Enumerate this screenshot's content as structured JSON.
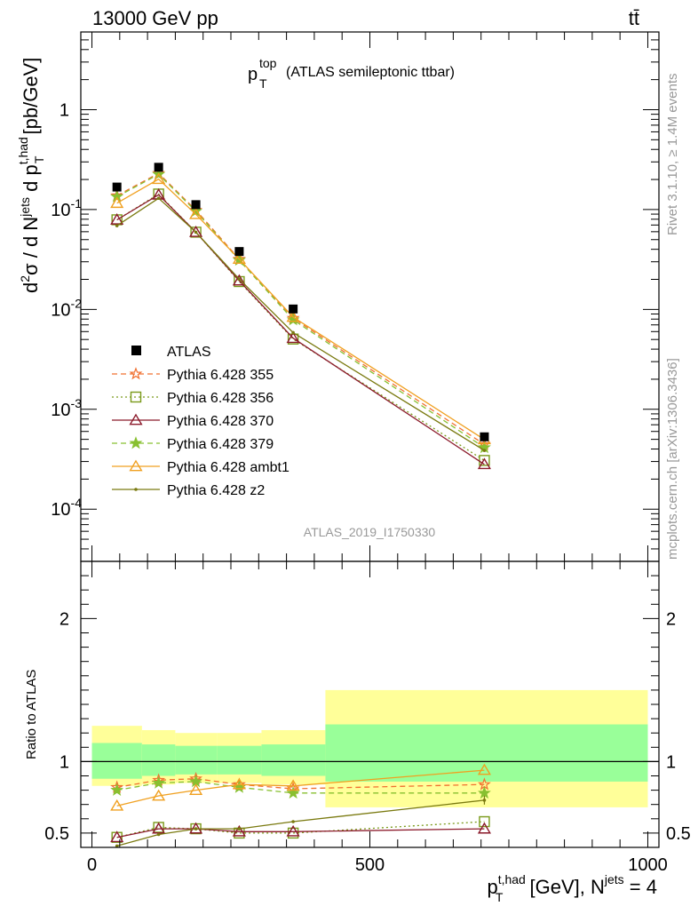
{
  "header": {
    "energy": "13000 GeV pp",
    "process": "tt̄",
    "plot_title_main": "p",
    "plot_title_sup": "top",
    "plot_title_sub": "T",
    "plot_title_rest": "(ATLAS semileptonic ttbar)",
    "analysis_id": "ATLAS_2019_I1750330",
    "side_rivet": "Rivet 3.1.10, ≥ 1.4M events",
    "side_mcplots": "mcplots.cern.ch [arXiv:1306.3436]"
  },
  "axes": {
    "main_ylabel": {
      "p1": "d",
      "p1_sup": "2",
      "p2": "σ / d N",
      "p2_sup": "jets",
      "p3": " d p",
      "p3_sup": "t,had",
      "p3_sub": "T",
      "p4": " [pb/GeV]"
    },
    "ratio_ylabel": "Ratio to ATLAS",
    "xlabel": {
      "p1": "p",
      "p1_sup": "t,had",
      "p1_sub": "T",
      "p2": " [GeV], N",
      "p2_sup": "jets",
      "p3": " = 4"
    },
    "main_ticks": [
      {
        "v": 1,
        "base": "1",
        "exp": ""
      },
      {
        "v": 0.1,
        "base": "10",
        "exp": "-1"
      },
      {
        "v": 0.01,
        "base": "10",
        "exp": "-2"
      },
      {
        "v": 0.001,
        "base": "10",
        "exp": "-3"
      },
      {
        "v": 0.0001,
        "base": "10",
        "exp": "-4"
      }
    ],
    "ratio_ticks": [
      "2",
      "1",
      "0.5"
    ],
    "x_ticks": [
      "0",
      "500",
      "1000"
    ]
  },
  "legend": {
    "atlas": "ATLAS",
    "s355": "Pythia 6.428 355",
    "s356": "Pythia 6.428 356",
    "s370": "Pythia 6.428 370",
    "s379": "Pythia 6.428 379",
    "sambt1": "Pythia 6.428 ambt1",
    "sz2": "Pythia 6.428 z2"
  },
  "chart_data": {
    "type": "line",
    "title": "pT top (ATLAS semileptonic ttbar)",
    "xlabel": "pT t,had [GeV], N jets = 4",
    "ylabel": "d2σ / d Njets d pT t,had [pb/GeV]",
    "xlim": [
      -20,
      1020
    ],
    "ylim": [
      3e-05,
      6
    ],
    "ratio_ylim": [
      0.4,
      2.4
    ],
    "x": [
      45,
      120,
      187,
      265,
      362,
      706
    ],
    "bins": [
      [
        0,
        90
      ],
      [
        90,
        150
      ],
      [
        150,
        225
      ],
      [
        225,
        305
      ],
      [
        305,
        420
      ],
      [
        420,
        1000
      ]
    ],
    "atlas": [
      0.168,
      0.265,
      0.112,
      0.038,
      0.0101,
      0.00053
    ],
    "band_inner": [
      [
        0.88,
        1.13
      ],
      [
        0.9,
        1.12
      ],
      [
        0.91,
        1.11
      ],
      [
        0.91,
        1.11
      ],
      [
        0.9,
        1.12
      ],
      [
        0.86,
        1.26
      ]
    ],
    "band_outer": [
      [
        0.83,
        1.25
      ],
      [
        0.84,
        1.22
      ],
      [
        0.85,
        1.2
      ],
      [
        0.85,
        1.2
      ],
      [
        0.84,
        1.22
      ],
      [
        0.68,
        1.5
      ]
    ],
    "series": [
      {
        "name": "Pythia 6.428 355",
        "key": "s355",
        "color": "#f07030",
        "dash": "6,4",
        "marker": "star-open",
        "ratio": [
          0.82,
          0.87,
          0.88,
          0.84,
          0.81,
          0.84
        ]
      },
      {
        "name": "Pythia 6.428 356",
        "key": "s356",
        "color": "#7a9a1a",
        "dash": "2,3",
        "marker": "square-open",
        "ratio": [
          0.47,
          0.54,
          0.53,
          0.5,
          0.5,
          0.58
        ]
      },
      {
        "name": "Pythia 6.428 370",
        "key": "s370",
        "color": "#8b1a2b",
        "dash": "",
        "marker": "triangle-open",
        "ratio": [
          0.47,
          0.53,
          0.53,
          0.51,
          0.51,
          0.53
        ]
      },
      {
        "name": "Pythia 6.428 379",
        "key": "s379",
        "color": "#88c030",
        "dash": "6,4",
        "marker": "star-filled",
        "ratio": [
          0.8,
          0.85,
          0.86,
          0.82,
          0.78,
          0.78
        ]
      },
      {
        "name": "Pythia 6.428 ambt1",
        "key": "sambt1",
        "color": "#f0a020",
        "dash": "",
        "marker": "triangle-open",
        "ratio": [
          0.69,
          0.76,
          0.8,
          0.84,
          0.83,
          0.94
        ]
      },
      {
        "name": "Pythia 6.428 z2",
        "key": "sz2",
        "color": "#7a7a10",
        "dash": "",
        "marker": "dot",
        "ratio": [
          0.41,
          0.49,
          0.53,
          0.53,
          0.58,
          0.73
        ]
      }
    ]
  }
}
